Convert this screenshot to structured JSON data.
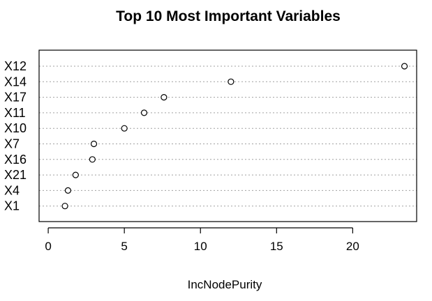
{
  "chart_data": {
    "type": "scatter",
    "subtype": "dotchart",
    "title": "Top 10 Most Important Variables",
    "xlabel": "IncNodePurity",
    "ylabel": "",
    "categories": [
      "X12",
      "X14",
      "X17",
      "X11",
      "X10",
      "X7",
      "X16",
      "X21",
      "X4",
      "X1"
    ],
    "values": [
      23.4,
      12.0,
      7.6,
      6.3,
      5.0,
      3.0,
      2.9,
      1.8,
      1.3,
      1.1
    ],
    "xlim": [
      -0.6,
      24.2
    ],
    "xticks": [
      0,
      5,
      10,
      15,
      20
    ],
    "xtick_labels": [
      "0",
      "5",
      "10",
      "15",
      "20"
    ],
    "grid": true,
    "grid_style": "dotted horizontal",
    "legend": "none",
    "marker": "open-circle",
    "colors": {
      "point_stroke": "#000000",
      "point_fill": "#ffffff",
      "grid": "#a0a0a0",
      "frame": "#000000"
    }
  }
}
